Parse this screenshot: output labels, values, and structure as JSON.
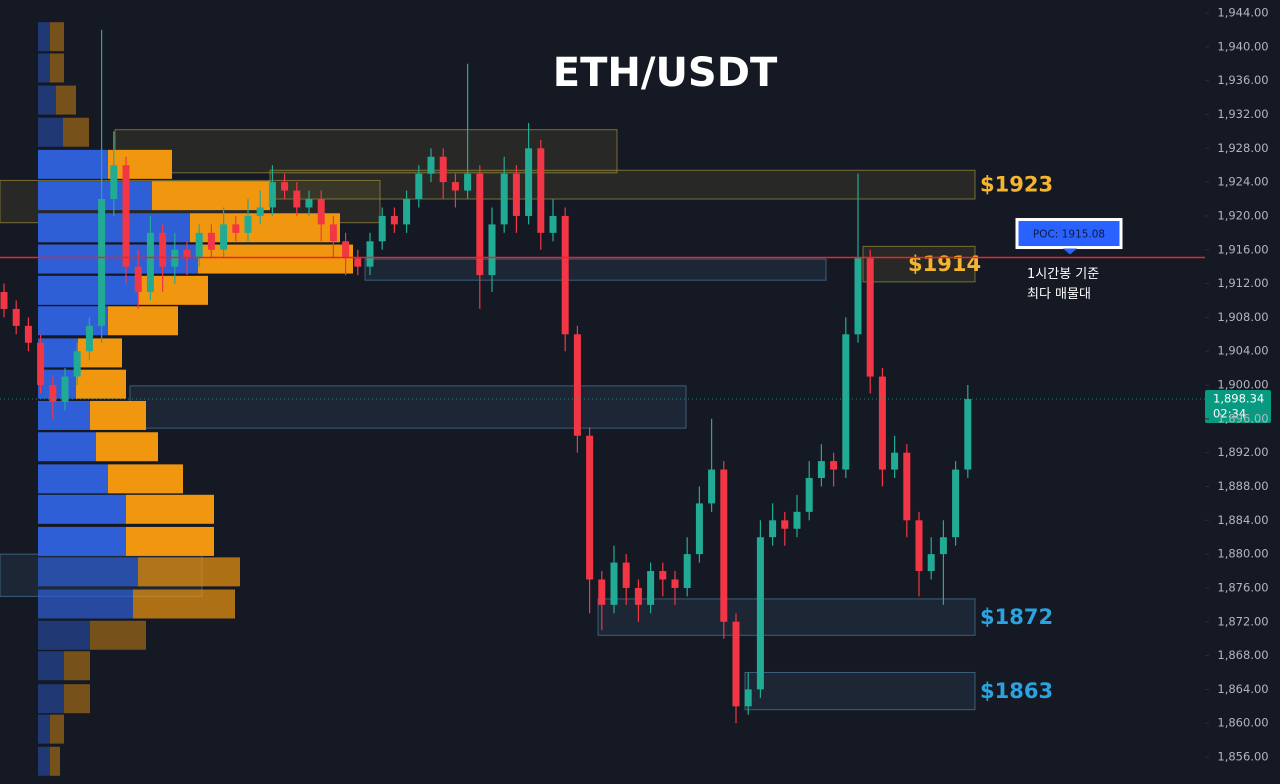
{
  "chart_data": {
    "type": "candlestick",
    "title": "ETH/USDT",
    "ylim": [
      1852.81,
      1945.54
    ],
    "yticks": [
      {
        "value": 1856,
        "label": "1,856.00"
      },
      {
        "value": 1860,
        "label": "1,860.00"
      },
      {
        "value": 1864,
        "label": "1,864.00"
      },
      {
        "value": 1868,
        "label": "1,868.00"
      },
      {
        "value": 1872,
        "label": "1,872.00"
      },
      {
        "value": 1876,
        "label": "1,876.00"
      },
      {
        "value": 1880,
        "label": "1,880.00"
      },
      {
        "value": 1884,
        "label": "1,884.00"
      },
      {
        "value": 1888,
        "label": "1,888.00"
      },
      {
        "value": 1892,
        "label": "1,892.00"
      },
      {
        "value": 1896,
        "label": "1,896.00"
      },
      {
        "value": 1900,
        "label": "1,900.00"
      },
      {
        "value": 1904,
        "label": "1,904.00"
      },
      {
        "value": 1908,
        "label": "1,908.00"
      },
      {
        "value": 1912,
        "label": "1,912.00"
      },
      {
        "value": 1916,
        "label": "1,916.00"
      },
      {
        "value": 1920,
        "label": "1,920.00"
      },
      {
        "value": 1924,
        "label": "1,924.00"
      },
      {
        "value": 1928,
        "label": "1,928.00"
      },
      {
        "value": 1932,
        "label": "1,932.00"
      },
      {
        "value": 1936,
        "label": "1,936.00"
      },
      {
        "value": 1940,
        "label": "1,940.00"
      },
      {
        "value": 1944,
        "label": "1,944.00"
      }
    ],
    "up_color": "#22ab94",
    "down_color": "#f23645",
    "candles": [
      [
        1911,
        1912,
        1908,
        1909
      ],
      [
        1909,
        1910,
        1906,
        1907
      ],
      [
        1907,
        1908,
        1904,
        1905
      ],
      [
        1905,
        1906,
        1899,
        1900
      ],
      [
        1900,
        1901,
        1896,
        1898
      ],
      [
        1898,
        1902,
        1897,
        1901
      ],
      [
        1901,
        1905,
        1900,
        1904
      ],
      [
        1904,
        1908,
        1903,
        1907
      ],
      [
        1907,
        1942,
        1905,
        1922
      ],
      [
        1922,
        1930,
        1920,
        1926
      ],
      [
        1926,
        1927,
        1912,
        1914
      ],
      [
        1914,
        1916,
        1909,
        1911
      ],
      [
        1911,
        1920,
        1910,
        1918
      ],
      [
        1918,
        1919,
        1911,
        1914
      ],
      [
        1914,
        1918,
        1912,
        1916
      ],
      [
        1916,
        1917,
        1913,
        1915
      ],
      [
        1915,
        1919,
        1914,
        1918
      ],
      [
        1918,
        1919,
        1915,
        1916
      ],
      [
        1916,
        1921,
        1915,
        1919
      ],
      [
        1919,
        1920,
        1917,
        1918
      ],
      [
        1918,
        1922,
        1917,
        1920
      ],
      [
        1920,
        1923,
        1919,
        1921
      ],
      [
        1921,
        1926,
        1920,
        1924
      ],
      [
        1924,
        1925,
        1922,
        1923
      ],
      [
        1923,
        1924,
        1920,
        1921
      ],
      [
        1921,
        1923,
        1920,
        1922
      ],
      [
        1922,
        1923,
        1917,
        1919
      ],
      [
        1919,
        1920,
        1915,
        1917
      ],
      [
        1917,
        1918,
        1913,
        1915
      ],
      [
        1915,
        1916,
        1913,
        1914
      ],
      [
        1914,
        1918,
        1913,
        1917
      ],
      [
        1917,
        1921,
        1916,
        1920
      ],
      [
        1920,
        1921,
        1918,
        1919
      ],
      [
        1919,
        1923,
        1918,
        1922
      ],
      [
        1922,
        1926,
        1921,
        1925
      ],
      [
        1925,
        1928,
        1924,
        1927
      ],
      [
        1927,
        1928,
        1922,
        1924
      ],
      [
        1924,
        1925,
        1921,
        1923
      ],
      [
        1923,
        1938,
        1922,
        1925
      ],
      [
        1925,
        1926,
        1909,
        1913
      ],
      [
        1913,
        1921,
        1911,
        1919
      ],
      [
        1919,
        1927,
        1918,
        1925
      ],
      [
        1925,
        1926,
        1918,
        1920
      ],
      [
        1920,
        1931,
        1919,
        1928
      ],
      [
        1928,
        1929,
        1916,
        1918
      ],
      [
        1918,
        1922,
        1917,
        1920
      ],
      [
        1920,
        1921,
        1904,
        1906
      ],
      [
        1906,
        1907,
        1892,
        1894
      ],
      [
        1894,
        1895,
        1873,
        1877
      ],
      [
        1877,
        1878,
        1871,
        1874
      ],
      [
        1874,
        1881,
        1873,
        1879
      ],
      [
        1879,
        1880,
        1874,
        1876
      ],
      [
        1876,
        1877,
        1872,
        1874
      ],
      [
        1874,
        1879,
        1873,
        1878
      ],
      [
        1878,
        1879,
        1875,
        1877
      ],
      [
        1877,
        1878,
        1874,
        1876
      ],
      [
        1876,
        1882,
        1875,
        1880
      ],
      [
        1880,
        1888,
        1879,
        1886
      ],
      [
        1886,
        1896,
        1885,
        1890
      ],
      [
        1890,
        1891,
        1870,
        1872
      ],
      [
        1872,
        1873,
        1860,
        1862
      ],
      [
        1862,
        1866,
        1861,
        1864
      ],
      [
        1864,
        1884,
        1863,
        1882
      ],
      [
        1882,
        1886,
        1881,
        1884
      ],
      [
        1884,
        1885,
        1881,
        1883
      ],
      [
        1883,
        1887,
        1882,
        1885
      ],
      [
        1885,
        1891,
        1884,
        1889
      ],
      [
        1889,
        1893,
        1888,
        1891
      ],
      [
        1891,
        1892,
        1888,
        1890
      ],
      [
        1890,
        1908,
        1889,
        1906
      ],
      [
        1906,
        1925,
        1905,
        1915
      ],
      [
        1915,
        1916,
        1899,
        1901
      ],
      [
        1901,
        1902,
        1888,
        1890
      ],
      [
        1890,
        1894,
        1889,
        1892
      ],
      [
        1892,
        1893,
        1882,
        1884
      ],
      [
        1884,
        1885,
        1875,
        1878
      ],
      [
        1878,
        1882,
        1877,
        1880
      ],
      [
        1880,
        1884,
        1874,
        1882
      ],
      [
        1882,
        1891,
        1881,
        1890
      ],
      [
        1890,
        1900,
        1889,
        1898.34
      ]
    ],
    "volume_profile": {
      "buy_color": "#2f5fd6",
      "sell_color": "#f0960f",
      "levels": [
        1941.2,
        1937.5,
        1933.7,
        1929.9,
        1926.1,
        1922.4,
        1918.6,
        1914.9,
        1911.2,
        1907.6,
        1903.8,
        1900.1,
        1896.4,
        1892.7,
        1888.9,
        1885.3,
        1881.5,
        1877.9,
        1874.1,
        1870.4,
        1866.8,
        1862.9,
        1859.3,
        1855.5
      ],
      "buy": [
        12,
        12,
        18,
        25,
        70,
        114,
        152,
        160,
        100,
        70,
        40,
        38,
        52,
        58,
        70,
        88,
        88,
        100,
        95,
        52,
        26,
        26,
        12,
        12
      ],
      "sell": [
        14,
        14,
        20,
        26,
        64,
        118,
        150,
        155,
        70,
        70,
        44,
        50,
        56,
        62,
        75,
        88,
        88,
        102,
        102,
        56,
        26,
        26,
        14,
        10
      ]
    },
    "zones": [
      {
        "lo": 1925.1,
        "hi": 1930.2,
        "color": "#9c8f3a"
      },
      {
        "lo": 1922,
        "hi": 1925.4,
        "color": "#9c8f3a",
        "label": "$1923"
      },
      {
        "lo": 1912.2,
        "hi": 1916.4,
        "color": "#9c8f3a",
        "label": "$1914"
      },
      {
        "lo": 1912.4,
        "hi": 1914.9,
        "color": "#4a7a9c"
      },
      {
        "lo": 1919.2,
        "hi": 1924.2,
        "color": "#9c8f3a"
      },
      {
        "lo": 1894.9,
        "hi": 1899.9,
        "color": "#4a7a9c"
      },
      {
        "lo": 1875,
        "hi": 1880,
        "color": "#4a7a9c"
      },
      {
        "lo": 1870.4,
        "hi": 1874.7,
        "color": "#4a7a9c",
        "label": "$1872"
      },
      {
        "lo": 1861.6,
        "hi": 1866,
        "color": "#4a7a9c",
        "label": "$1863"
      }
    ],
    "poc": {
      "value": 1915.08,
      "label": "POC: 1915.08",
      "color": "#e8242c"
    },
    "poc_note": [
      "1시간봉 기준",
      "최다 매물대"
    ],
    "current_price": {
      "value": 1898.34,
      "label": "1,898.34"
    },
    "countdown": "02:34"
  }
}
